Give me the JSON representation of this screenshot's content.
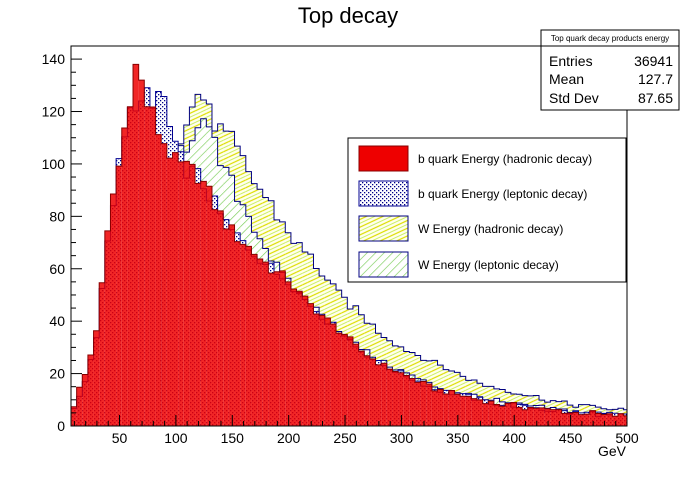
{
  "chart_data": {
    "type": "histogram",
    "title": "Top decay",
    "xlabel": "GeV",
    "ylabel": "",
    "xlim": [
      7,
      500
    ],
    "ylim": [
      0,
      145
    ],
    "x_ticks": [
      50,
      100,
      150,
      200,
      250,
      300,
      350,
      400,
      450,
      500
    ],
    "y_ticks": [
      0,
      20,
      40,
      60,
      80,
      100,
      120,
      140
    ],
    "grid": false,
    "legend_position": "right",
    "stats_box": {
      "title": "Top quark decay products energy",
      "rows": [
        {
          "label": "Entries",
          "value": "36941"
        },
        {
          "label": "Mean",
          "value": "127.7"
        },
        {
          "label": "Std Dev",
          "value": "87.65"
        }
      ]
    },
    "bin_width": 5,
    "series": [
      {
        "name": "b quark Energy (hadronic decay)",
        "style": "solid-red",
        "fill": "#ee0000",
        "line": "#880000",
        "points": [
          [
            10,
            8
          ],
          [
            15,
            15
          ],
          [
            20,
            20
          ],
          [
            25,
            28
          ],
          [
            30,
            38
          ],
          [
            35,
            55
          ],
          [
            40,
            75
          ],
          [
            45,
            90
          ],
          [
            50,
            100
          ],
          [
            55,
            115
          ],
          [
            60,
            128
          ],
          [
            65,
            138
          ],
          [
            70,
            130
          ],
          [
            75,
            122
          ],
          [
            80,
            118
          ],
          [
            85,
            112
          ],
          [
            90,
            108
          ],
          [
            95,
            104
          ],
          [
            100,
            100
          ],
          [
            110,
            98
          ],
          [
            120,
            96
          ],
          [
            130,
            88
          ],
          [
            140,
            80
          ],
          [
            150,
            74
          ],
          [
            160,
            70
          ],
          [
            170,
            66
          ],
          [
            180,
            62
          ],
          [
            190,
            58
          ],
          [
            200,
            56
          ],
          [
            210,
            50
          ],
          [
            220,
            46
          ],
          [
            230,
            42
          ],
          [
            240,
            38
          ],
          [
            250,
            35
          ],
          [
            260,
            30
          ],
          [
            270,
            27
          ],
          [
            280,
            24
          ],
          [
            290,
            22
          ],
          [
            300,
            20
          ],
          [
            310,
            18
          ],
          [
            320,
            16
          ],
          [
            330,
            14
          ],
          [
            340,
            13
          ],
          [
            350,
            12
          ],
          [
            360,
            11
          ],
          [
            370,
            10
          ],
          [
            380,
            9
          ],
          [
            390,
            8
          ],
          [
            400,
            8
          ],
          [
            410,
            7
          ],
          [
            420,
            7
          ],
          [
            430,
            6
          ],
          [
            440,
            6
          ],
          [
            450,
            5
          ],
          [
            460,
            5
          ],
          [
            470,
            5
          ],
          [
            480,
            4
          ],
          [
            490,
            4
          ],
          [
            500,
            4
          ]
        ]
      },
      {
        "name": "b quark Energy (leptonic decay)",
        "style": "dotted-blue",
        "fill": "#7080c0",
        "line": "#000090",
        "points": [
          [
            10,
            6
          ],
          [
            15,
            12
          ],
          [
            20,
            18
          ],
          [
            25,
            26
          ],
          [
            30,
            36
          ],
          [
            35,
            55
          ],
          [
            40,
            70
          ],
          [
            45,
            88
          ],
          [
            50,
            100
          ],
          [
            55,
            110
          ],
          [
            60,
            120
          ],
          [
            65,
            125
          ],
          [
            70,
            122
          ],
          [
            75,
            125
          ],
          [
            80,
            120
          ],
          [
            85,
            128
          ],
          [
            90,
            124
          ],
          [
            95,
            112
          ],
          [
            100,
            104
          ],
          [
            110,
            98
          ],
          [
            120,
            95
          ],
          [
            130,
            88
          ],
          [
            140,
            80
          ],
          [
            150,
            74
          ],
          [
            160,
            70
          ],
          [
            170,
            66
          ],
          [
            180,
            62
          ],
          [
            190,
            58
          ],
          [
            200,
            56
          ],
          [
            210,
            50
          ],
          [
            220,
            46
          ],
          [
            230,
            42
          ],
          [
            240,
            38
          ],
          [
            250,
            35
          ],
          [
            260,
            30
          ],
          [
            270,
            27
          ],
          [
            280,
            24
          ],
          [
            290,
            22
          ],
          [
            300,
            20
          ],
          [
            310,
            18
          ],
          [
            320,
            16
          ],
          [
            330,
            14
          ],
          [
            340,
            13
          ],
          [
            350,
            12
          ],
          [
            360,
            11
          ],
          [
            370,
            10
          ],
          [
            380,
            9
          ],
          [
            390,
            8
          ],
          [
            400,
            8
          ],
          [
            410,
            7
          ],
          [
            420,
            7
          ],
          [
            430,
            6
          ],
          [
            440,
            6
          ],
          [
            450,
            5
          ],
          [
            460,
            5
          ],
          [
            470,
            5
          ],
          [
            480,
            4
          ],
          [
            490,
            4
          ],
          [
            500,
            4
          ]
        ]
      },
      {
        "name": "W Energy (hadronic decay)",
        "style": "hatched-yellow",
        "fill": "#ffff99",
        "line": "#000080",
        "points": [
          [
            80,
            0
          ],
          [
            85,
            0
          ],
          [
            90,
            70
          ],
          [
            95,
            95
          ],
          [
            100,
            108
          ],
          [
            105,
            110
          ],
          [
            110,
            115
          ],
          [
            115,
            122
          ],
          [
            120,
            128
          ],
          [
            125,
            125
          ],
          [
            130,
            118
          ],
          [
            135,
            116
          ],
          [
            140,
            112
          ],
          [
            145,
            110
          ],
          [
            150,
            108
          ],
          [
            155,
            104
          ],
          [
            160,
            100
          ],
          [
            165,
            96
          ],
          [
            170,
            93
          ],
          [
            175,
            90
          ],
          [
            180,
            87
          ],
          [
            185,
            84
          ],
          [
            190,
            80
          ],
          [
            195,
            77
          ],
          [
            200,
            74
          ],
          [
            210,
            68
          ],
          [
            220,
            64
          ],
          [
            230,
            58
          ],
          [
            240,
            52
          ],
          [
            250,
            48
          ],
          [
            260,
            44
          ],
          [
            270,
            40
          ],
          [
            280,
            36
          ],
          [
            290,
            33
          ],
          [
            300,
            30
          ],
          [
            310,
            28
          ],
          [
            320,
            26
          ],
          [
            330,
            24
          ],
          [
            340,
            22
          ],
          [
            350,
            20
          ],
          [
            360,
            18
          ],
          [
            370,
            16
          ],
          [
            380,
            15
          ],
          [
            390,
            14
          ],
          [
            400,
            13
          ],
          [
            410,
            12
          ],
          [
            420,
            11
          ],
          [
            430,
            10
          ],
          [
            440,
            9
          ],
          [
            450,
            8
          ],
          [
            460,
            8
          ],
          [
            470,
            7
          ],
          [
            480,
            7
          ],
          [
            490,
            6
          ],
          [
            500,
            6
          ]
        ]
      },
      {
        "name": "W Energy (leptonic decay)",
        "style": "hatched-green",
        "fill": "#a8e070",
        "line": "#000080",
        "points": [
          [
            80,
            0
          ],
          [
            85,
            0
          ],
          [
            90,
            65
          ],
          [
            95,
            90
          ],
          [
            100,
            104
          ],
          [
            105,
            106
          ],
          [
            110,
            108
          ],
          [
            115,
            112
          ],
          [
            120,
            118
          ],
          [
            125,
            115
          ],
          [
            130,
            110
          ],
          [
            135,
            106
          ],
          [
            140,
            100
          ],
          [
            145,
            96
          ],
          [
            150,
            92
          ],
          [
            155,
            88
          ],
          [
            160,
            84
          ],
          [
            165,
            80
          ],
          [
            170,
            76
          ],
          [
            175,
            72
          ],
          [
            180,
            68
          ],
          [
            185,
            64
          ],
          [
            190,
            60
          ],
          [
            195,
            57
          ],
          [
            200,
            54
          ],
          [
            210,
            50
          ],
          [
            220,
            46
          ],
          [
            230,
            42
          ],
          [
            240,
            38
          ],
          [
            250,
            34
          ],
          [
            260,
            31
          ],
          [
            270,
            28
          ],
          [
            280,
            25
          ],
          [
            290,
            23
          ],
          [
            300,
            21
          ],
          [
            310,
            19
          ],
          [
            320,
            17
          ],
          [
            330,
            15
          ],
          [
            340,
            14
          ],
          [
            350,
            13
          ],
          [
            360,
            12
          ],
          [
            370,
            11
          ],
          [
            380,
            10
          ],
          [
            390,
            9
          ],
          [
            400,
            8
          ],
          [
            410,
            8
          ],
          [
            420,
            7
          ],
          [
            430,
            7
          ],
          [
            440,
            6
          ],
          [
            450,
            6
          ],
          [
            460,
            5
          ],
          [
            470,
            5
          ],
          [
            480,
            5
          ],
          [
            490,
            4
          ],
          [
            500,
            4
          ]
        ]
      }
    ]
  }
}
